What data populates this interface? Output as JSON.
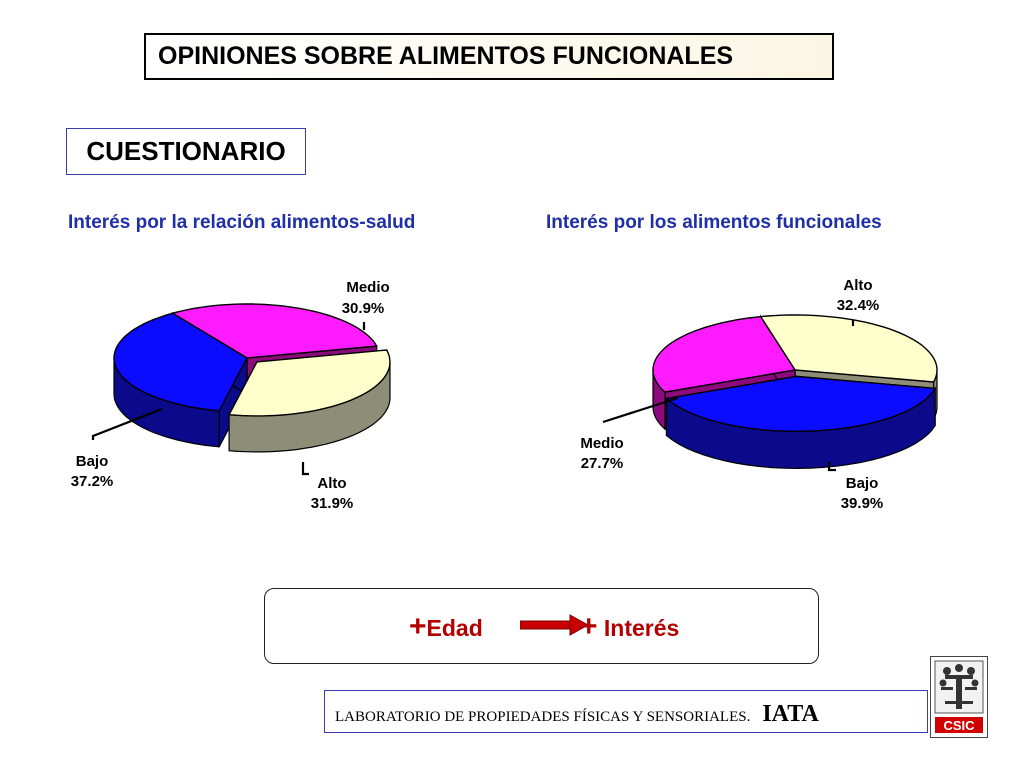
{
  "header": {
    "title": "OPINIONES SOBRE ALIMENTOS FUNCIONALES",
    "subtitle": "CUESTIONARIO"
  },
  "colors": {
    "blue": "#0b0bff",
    "magenta": "#ff1bff",
    "cream": "#ffffcc",
    "accent_red": "#c80000"
  },
  "chart_data": [
    {
      "type": "pie",
      "title": "Interés por la relación alimentos-salud",
      "slices": [
        {
          "label": "Medio",
          "value": 30.9,
          "display": "30.9%",
          "color": "#ff1bff"
        },
        {
          "label": "Alto",
          "value": 31.9,
          "display": "31.9%",
          "color": "#ffffcc"
        },
        {
          "label": "Bajo",
          "value": 37.2,
          "display": "37.2%",
          "color": "#0b0bff"
        }
      ]
    },
    {
      "type": "pie",
      "title": "Interés por los alimentos funcionales",
      "slices": [
        {
          "label": "Alto",
          "value": 32.4,
          "display": "32.4%",
          "color": "#ffffcc"
        },
        {
          "label": "Bajo",
          "value": 39.9,
          "display": "39.9%",
          "color": "#0b0bff"
        },
        {
          "label": "Medio",
          "value": 27.7,
          "display": "27.7%",
          "color": "#ff1bff"
        }
      ]
    }
  ],
  "conclusion": {
    "left_plus": "+",
    "left_text": "Edad",
    "right_plus": "+",
    "right_text": " Interés"
  },
  "footer": {
    "lab": "LABORATORIO DE PROPIEDADES  FÍSICAS Y SENSORIALES.",
    "iata": "IATA"
  },
  "logo": {
    "text": "CSIC",
    "icon": "csic-tree-logo"
  }
}
